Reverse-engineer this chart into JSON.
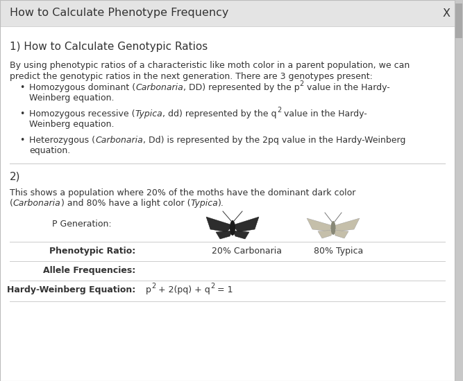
{
  "title": "How to Calculate Phenotype Frequency",
  "close_btn": "X",
  "section1_heading": "1) How to Calculate Genotypic Ratios",
  "section1_intro_1": "By using phenotypic ratios of a characteristic like moth color in a parent population, we can",
  "section1_intro_2": "predict the genotypic ratios in the next generation. There are 3 genotypes present:",
  "section2_heading": "2)",
  "section2_line1": "This shows a population where 20% of the moths have the dominant dark color",
  "table_label": "P Generation:",
  "phenotypic_label": "Phenotypic Ratio:",
  "carbonaria_pct": "20% Carbonaria",
  "typica_pct": "80% Typica",
  "allele_label": "Allele Frequencies:",
  "hw_label": "Hardy-Weinberg Equation:",
  "bg_color": "#f0f0f0",
  "panel_color": "#ffffff",
  "header_bg": "#e4e4e4",
  "text_color": "#333333",
  "line_color": "#cccccc",
  "scroll_color": "#c8c8c8",
  "scroll_thumb": "#a8a8a8",
  "fs_title": 11.5,
  "fs_heading": 11,
  "fs_body": 9,
  "fs_table": 9,
  "fs_bullet": 9
}
